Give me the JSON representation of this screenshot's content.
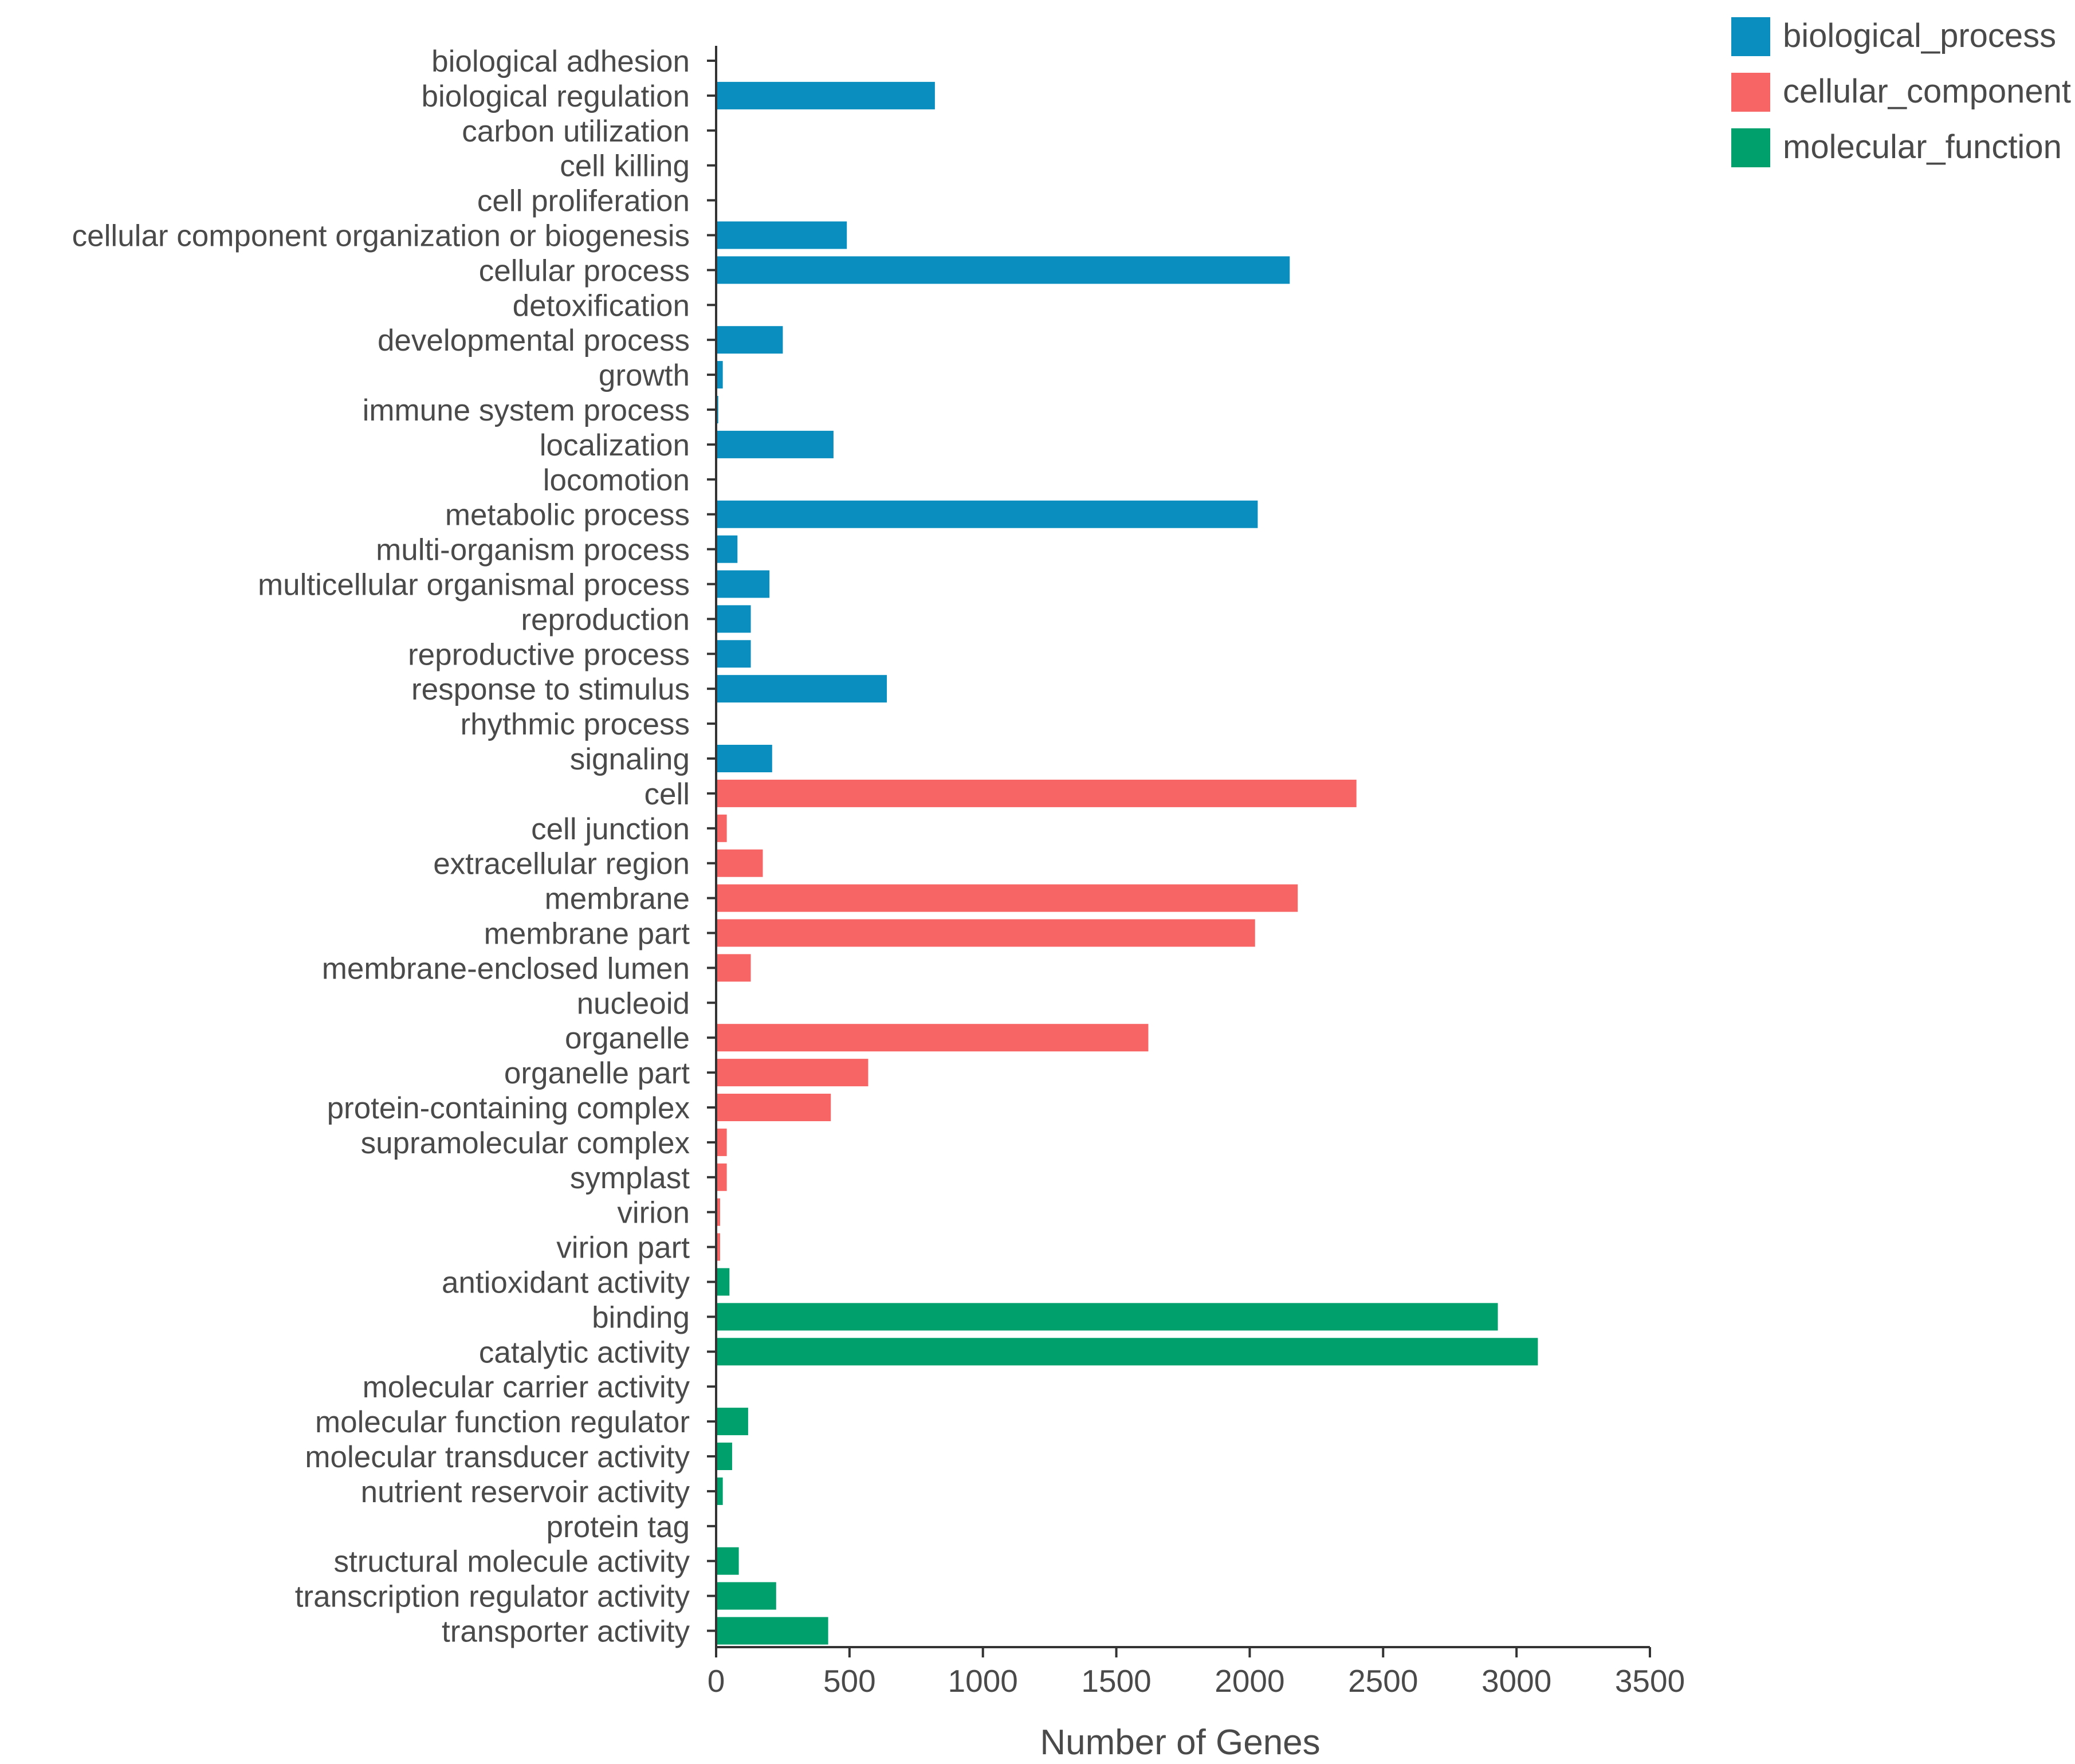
{
  "colors": {
    "biological_process": "#0a8ebf",
    "cellular_component": "#f86565",
    "molecular_function": "#00a06d"
  },
  "chart_data": {
    "type": "bar",
    "orientation": "horizontal",
    "title": "",
    "xlabel": "Number of Genes",
    "ylabel": "",
    "xlim": [
      0,
      3500
    ],
    "xticks": [
      0,
      500,
      1000,
      1500,
      2000,
      2500,
      3000,
      3500
    ],
    "grid": false,
    "legend_position": "top-right",
    "legend": [
      {
        "key": "biological_process",
        "label": "biological_process"
      },
      {
        "key": "cellular_component",
        "label": "cellular_component"
      },
      {
        "key": "molecular_function",
        "label": "molecular_function"
      }
    ],
    "bars": [
      {
        "category": "biological adhesion",
        "group": "biological_process",
        "value": 3
      },
      {
        "category": "biological regulation",
        "group": "biological_process",
        "value": 820
      },
      {
        "category": "carbon utilization",
        "group": "biological_process",
        "value": 2
      },
      {
        "category": "cell killing",
        "group": "biological_process",
        "value": 1
      },
      {
        "category": "cell proliferation",
        "group": "biological_process",
        "value": 2
      },
      {
        "category": "cellular component organization or biogenesis",
        "group": "biological_process",
        "value": 490
      },
      {
        "category": "cellular process",
        "group": "biological_process",
        "value": 2150
      },
      {
        "category": "detoxification",
        "group": "biological_process",
        "value": 4
      },
      {
        "category": "developmental process",
        "group": "biological_process",
        "value": 250
      },
      {
        "category": "growth",
        "group": "biological_process",
        "value": 25
      },
      {
        "category": "immune system process",
        "group": "biological_process",
        "value": 8
      },
      {
        "category": "localization",
        "group": "biological_process",
        "value": 440
      },
      {
        "category": "locomotion",
        "group": "biological_process",
        "value": 2
      },
      {
        "category": "metabolic process",
        "group": "biological_process",
        "value": 2030
      },
      {
        "category": "multi-organism process",
        "group": "biological_process",
        "value": 80
      },
      {
        "category": "multicellular organismal process",
        "group": "biological_process",
        "value": 200
      },
      {
        "category": "reproduction",
        "group": "biological_process",
        "value": 130
      },
      {
        "category": "reproductive process",
        "group": "biological_process",
        "value": 130
      },
      {
        "category": "response to stimulus",
        "group": "biological_process",
        "value": 640
      },
      {
        "category": "rhythmic process",
        "group": "biological_process",
        "value": 2
      },
      {
        "category": "signaling",
        "group": "biological_process",
        "value": 210
      },
      {
        "category": "cell",
        "group": "cellular_component",
        "value": 2400
      },
      {
        "category": "cell junction",
        "group": "cellular_component",
        "value": 40
      },
      {
        "category": "extracellular region",
        "group": "cellular_component",
        "value": 175
      },
      {
        "category": "membrane",
        "group": "cellular_component",
        "value": 2180
      },
      {
        "category": "membrane part",
        "group": "cellular_component",
        "value": 2020
      },
      {
        "category": "membrane-enclosed lumen",
        "group": "cellular_component",
        "value": 130
      },
      {
        "category": "nucleoid",
        "group": "cellular_component",
        "value": 2
      },
      {
        "category": "organelle",
        "group": "cellular_component",
        "value": 1620
      },
      {
        "category": "organelle part",
        "group": "cellular_component",
        "value": 570
      },
      {
        "category": "protein-containing complex",
        "group": "cellular_component",
        "value": 430
      },
      {
        "category": "supramolecular complex",
        "group": "cellular_component",
        "value": 40
      },
      {
        "category": "symplast",
        "group": "cellular_component",
        "value": 40
      },
      {
        "category": "virion",
        "group": "cellular_component",
        "value": 15
      },
      {
        "category": "virion part",
        "group": "cellular_component",
        "value": 15
      },
      {
        "category": "antioxidant activity",
        "group": "molecular_function",
        "value": 50
      },
      {
        "category": "binding",
        "group": "molecular_function",
        "value": 2930
      },
      {
        "category": "catalytic activity",
        "group": "molecular_function",
        "value": 3080
      },
      {
        "category": "molecular carrier activity",
        "group": "molecular_function",
        "value": 3
      },
      {
        "category": "molecular function regulator",
        "group": "molecular_function",
        "value": 120
      },
      {
        "category": "molecular transducer activity",
        "group": "molecular_function",
        "value": 60
      },
      {
        "category": "nutrient reservoir activity",
        "group": "molecular_function",
        "value": 25
      },
      {
        "category": "protein tag",
        "group": "molecular_function",
        "value": 3
      },
      {
        "category": "structural molecule activity",
        "group": "molecular_function",
        "value": 85
      },
      {
        "category": "transcription regulator activity",
        "group": "molecular_function",
        "value": 225
      },
      {
        "category": "transporter activity",
        "group": "molecular_function",
        "value": 420
      }
    ]
  }
}
